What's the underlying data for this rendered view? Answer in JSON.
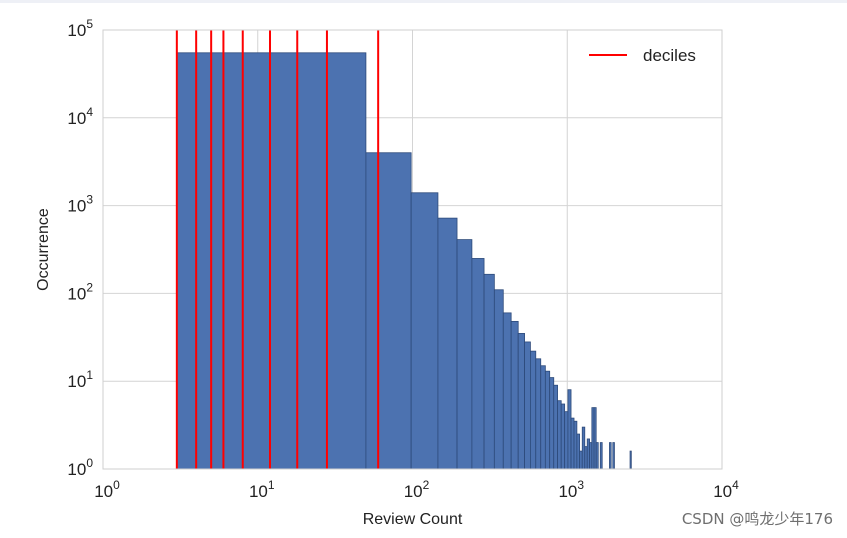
{
  "chart_data": {
    "type": "bar",
    "xscale": "log",
    "yscale": "log",
    "xlim": [
      1,
      10000
    ],
    "ylim": [
      1,
      100000
    ],
    "grid": true,
    "xlabel": "Review Count",
    "ylabel": "Occurrence",
    "x_ticks": [
      1,
      10,
      100,
      1000,
      10000
    ],
    "y_ticks": [
      1,
      10,
      100,
      1000,
      10000,
      100000
    ],
    "x_tick_labels": [
      {
        "base": "10",
        "exp": "0"
      },
      {
        "base": "10",
        "exp": "1"
      },
      {
        "base": "10",
        "exp": "2"
      },
      {
        "base": "10",
        "exp": "3"
      },
      {
        "base": "10",
        "exp": "4"
      }
    ],
    "y_tick_labels": [
      {
        "base": "10",
        "exp": "0"
      },
      {
        "base": "10",
        "exp": "1"
      },
      {
        "base": "10",
        "exp": "2"
      },
      {
        "base": "10",
        "exp": "3"
      },
      {
        "base": "10",
        "exp": "4"
      },
      {
        "base": "10",
        "exp": "5"
      }
    ],
    "bar_color": "#4c72b0",
    "bar_edge_color": "#2d4a7a",
    "decile_color": "#ff0000",
    "legend": {
      "label": "deciles",
      "position": "upper right"
    },
    "deciles": [
      3,
      4,
      5,
      6,
      8,
      12,
      18,
      28,
      60
    ],
    "bins": [
      {
        "x0": 3,
        "x1": 50,
        "count": 55000
      },
      {
        "x0": 50,
        "x1": 98,
        "count": 4000
      },
      {
        "x0": 98,
        "x1": 146,
        "count": 1400
      },
      {
        "x0": 146,
        "x1": 194,
        "count": 720
      },
      {
        "x0": 194,
        "x1": 242,
        "count": 410
      },
      {
        "x0": 242,
        "x1": 290,
        "count": 250
      },
      {
        "x0": 290,
        "x1": 338,
        "count": 165
      },
      {
        "x0": 338,
        "x1": 386,
        "count": 110
      },
      {
        "x0": 386,
        "x1": 434,
        "count": 60
      },
      {
        "x0": 434,
        "x1": 482,
        "count": 48
      },
      {
        "x0": 482,
        "x1": 530,
        "count": 35
      },
      {
        "x0": 530,
        "x1": 578,
        "count": 28
      },
      {
        "x0": 578,
        "x1": 626,
        "count": 22
      },
      {
        "x0": 626,
        "x1": 674,
        "count": 18
      },
      {
        "x0": 674,
        "x1": 722,
        "count": 15
      },
      {
        "x0": 722,
        "x1": 770,
        "count": 13
      },
      {
        "x0": 770,
        "x1": 818,
        "count": 11
      },
      {
        "x0": 818,
        "x1": 866,
        "count": 9
      },
      {
        "x0": 866,
        "x1": 914,
        "count": 6
      },
      {
        "x0": 914,
        "x1": 962,
        "count": 5.5
      },
      {
        "x0": 962,
        "x1": 1010,
        "count": 4.5
      },
      {
        "x0": 1010,
        "x1": 1058,
        "count": 8
      },
      {
        "x0": 1058,
        "x1": 1106,
        "count": 3.8
      },
      {
        "x0": 1106,
        "x1": 1154,
        "count": 3.5
      },
      {
        "x0": 1154,
        "x1": 1202,
        "count": 2.5
      },
      {
        "x0": 1202,
        "x1": 1250,
        "count": 1.6
      },
      {
        "x0": 1250,
        "x1": 1298,
        "count": 3
      },
      {
        "x0": 1298,
        "x1": 1346,
        "count": 1.8
      },
      {
        "x0": 1346,
        "x1": 1394,
        "count": 2.2
      },
      {
        "x0": 1394,
        "x1": 1442,
        "count": 2
      },
      {
        "x0": 1442,
        "x1": 1490,
        "count": 5
      },
      {
        "x0": 1490,
        "x1": 1538,
        "count": 5
      },
      {
        "x0": 1538,
        "x1": 1586,
        "count": 2
      },
      {
        "x0": 1634,
        "x1": 1682,
        "count": 2
      },
      {
        "x0": 1874,
        "x1": 1922,
        "count": 2
      },
      {
        "x0": 1970,
        "x1": 2018,
        "count": 2
      },
      {
        "x0": 2546,
        "x1": 2594,
        "count": 1.6
      }
    ]
  },
  "watermark": "CSDN @鸣龙少年176"
}
